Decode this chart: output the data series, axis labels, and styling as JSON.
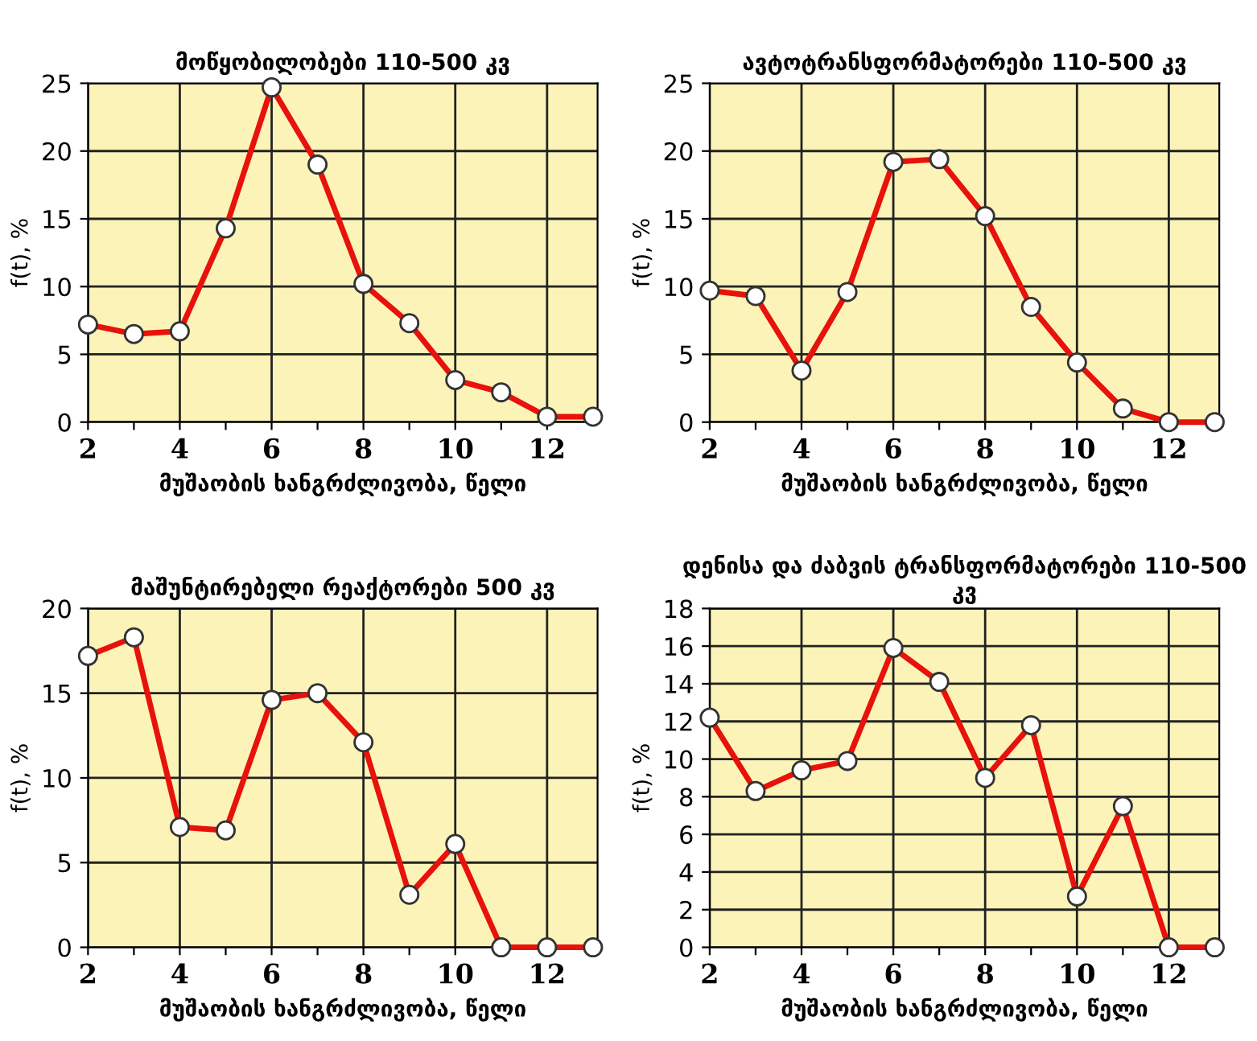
{
  "chart_data": [
    {
      "type": "line",
      "title": "მოწყობილობები 110-500 კვ",
      "xlabel": "მუშაობის ხანგრძლივობა, წელი",
      "ylabel": "f(t), %",
      "x": [
        2,
        3,
        4,
        5,
        6,
        7,
        8,
        9,
        10,
        11,
        12,
        13
      ],
      "series": [
        {
          "color": "#e8120c",
          "values": [
            7.2,
            6.5,
            6.7,
            14.3,
            24.7,
            19.0,
            10.2,
            7.3,
            3.1,
            2.2,
            0.4,
            0.4
          ]
        }
      ],
      "xlim": [
        2,
        13.1
      ],
      "xticks": [
        2,
        {
          "value": 3,
          "label": null
        },
        4,
        {
          "value": 5,
          "label": null
        },
        6,
        {
          "value": 7,
          "label": null
        },
        8,
        {
          "value": 9,
          "label": null
        },
        10,
        {
          "value": 11,
          "label": null
        },
        12
      ],
      "ylim": [
        0,
        25
      ],
      "yticks": [
        0,
        5,
        10,
        15,
        20,
        25
      ],
      "grid": true,
      "marker": "circle",
      "line_style": "solid"
    },
    {
      "type": "line",
      "title": "ავტოტრანსფორმატორები 110-500 კვ",
      "xlabel": "მუშაობის ხანგრძლივობა, წელი",
      "ylabel": "f(t), %",
      "x": [
        2,
        3,
        4,
        5,
        6,
        7,
        8,
        9,
        10,
        11,
        12,
        13
      ],
      "series": [
        {
          "color": "#e8120c",
          "values": [
            9.7,
            9.3,
            3.8,
            9.6,
            19.2,
            19.4,
            15.2,
            8.5,
            4.4,
            1.0,
            0,
            0
          ]
        }
      ],
      "xlim": [
        2,
        13.1
      ],
      "xticks": [
        2,
        {
          "value": 3,
          "label": null
        },
        4,
        {
          "value": 5,
          "label": null
        },
        6,
        {
          "value": 7,
          "label": null
        },
        8,
        {
          "value": 9,
          "label": null
        },
        10,
        {
          "value": 11,
          "label": null
        },
        12
      ],
      "ylim": [
        0,
        25
      ],
      "yticks": [
        0,
        5,
        10,
        15,
        20,
        25
      ],
      "grid": true,
      "marker": "circle",
      "line_style": "solid"
    },
    {
      "type": "line",
      "title": "მაშუნტირებელი რეაქტორები 500 კვ",
      "xlabel": "მუშაობის ხანგრძლივობა, წელი",
      "ylabel": "f(t), %",
      "x": [
        2,
        3,
        4,
        5,
        6,
        7,
        8,
        9,
        10,
        11,
        12,
        13
      ],
      "series": [
        {
          "color": "#e8120c",
          "values": [
            17.2,
            18.3,
            7.1,
            6.9,
            14.6,
            15.0,
            12.1,
            3.1,
            6.1,
            0,
            0,
            0
          ]
        }
      ],
      "xlim": [
        2,
        13.1
      ],
      "xticks": [
        2,
        {
          "value": 3,
          "label": null
        },
        4,
        {
          "value": 5,
          "label": null
        },
        6,
        {
          "value": 7,
          "label": null
        },
        8,
        {
          "value": 9,
          "label": null
        },
        10,
        {
          "value": 11,
          "label": null
        },
        12
      ],
      "ylim": [
        0,
        20
      ],
      "yticks": [
        0,
        5,
        10,
        15,
        20
      ],
      "grid": true,
      "marker": "circle",
      "line_style": "solid"
    },
    {
      "type": "line",
      "title": "დენისა და ძაბვის ტრანსფორმატორები 110-500 კვ",
      "xlabel": "მუშაობის ხანგრძლივობა, წელი",
      "ylabel": "f(t), %",
      "x": [
        2,
        3,
        4,
        5,
        6,
        7,
        8,
        9,
        10,
        11,
        12,
        13
      ],
      "series": [
        {
          "color": "#e8120c",
          "values": [
            12.2,
            8.3,
            9.4,
            9.9,
            15.9,
            14.1,
            9.0,
            11.8,
            2.7,
            7.5,
            0,
            0
          ]
        }
      ],
      "xlim": [
        2,
        13.1
      ],
      "xticks": [
        2,
        {
          "value": 3,
          "label": null
        },
        4,
        {
          "value": 5,
          "label": null
        },
        6,
        {
          "value": 7,
          "label": null
        },
        8,
        {
          "value": 9,
          "label": null
        },
        10,
        {
          "value": 11,
          "label": null
        },
        12
      ],
      "ylim": [
        0,
        18
      ],
      "yticks": [
        0,
        2,
        4,
        6,
        8,
        10,
        12,
        14,
        16,
        18
      ],
      "grid": true,
      "marker": "circle",
      "line_style": "solid"
    }
  ]
}
